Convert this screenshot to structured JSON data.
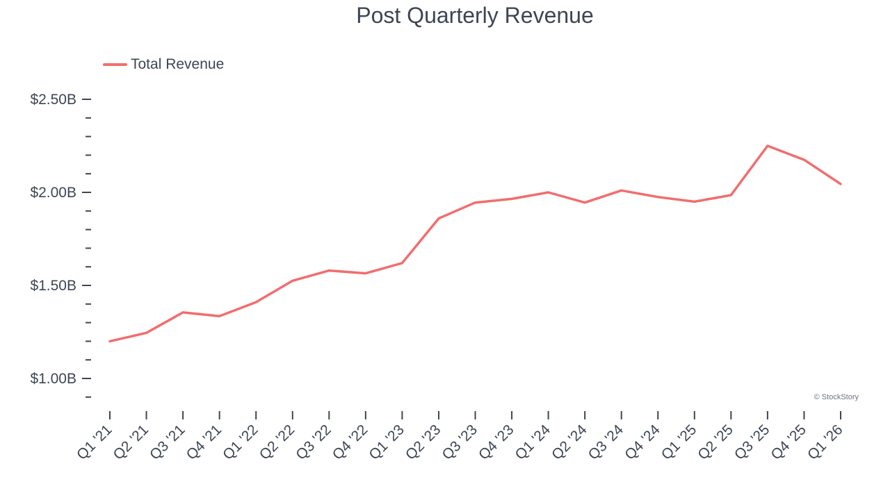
{
  "chart_data": {
    "type": "line",
    "title": "Post Quarterly Revenue",
    "xlabel": "",
    "ylabel": "",
    "categories": [
      "Q1 '21",
      "Q2 '21",
      "Q3 '21",
      "Q4 '21",
      "Q1 '22",
      "Q2 '22",
      "Q3 '22",
      "Q4 '22",
      "Q1 '23",
      "Q2 '23",
      "Q3 '23",
      "Q4 '23",
      "Q1 '24",
      "Q2 '24",
      "Q3 '24",
      "Q4 '24",
      "Q1 '25",
      "Q2 '25",
      "Q3 '25",
      "Q4 '25",
      "Q1 '26"
    ],
    "series": [
      {
        "name": "Total Revenue",
        "color": "#f26d6d",
        "values": [
          1.2,
          1.245,
          1.355,
          1.335,
          1.41,
          1.525,
          1.58,
          1.565,
          1.62,
          1.86,
          1.945,
          1.965,
          2.0,
          1.945,
          2.01,
          1.975,
          1.95,
          1.985,
          2.25,
          2.175,
          2.045
        ]
      }
    ],
    "yticks": [
      1.0,
      1.5,
      2.0,
      2.5
    ],
    "ytick_labels": [
      "$1.00B",
      "$1.50B",
      "$2.00B",
      "$2.50B"
    ],
    "ylim": [
      0.9,
      2.5
    ],
    "minor_tick_step": 0.1,
    "legend_position": "top-left",
    "grid": false,
    "watermark": "© StockStory"
  }
}
